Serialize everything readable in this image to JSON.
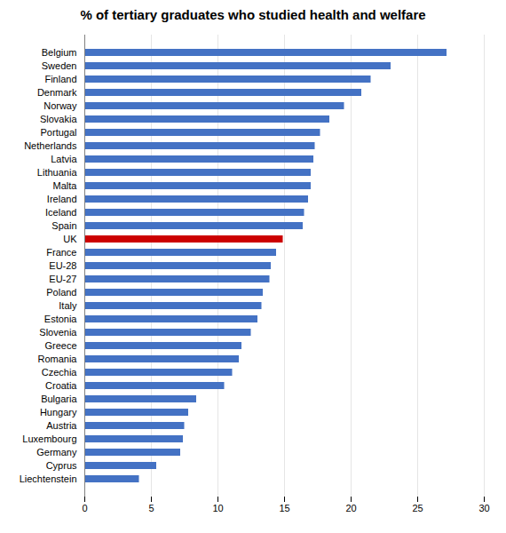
{
  "chart_data": {
    "type": "bar",
    "orientation": "horizontal",
    "title": "% of tertiary graduates who studied health and welfare",
    "categories": [
      "Belgium",
      "Sweden",
      "Finland",
      "Denmark",
      "Norway",
      "Slovakia",
      "Portugal",
      "Netherlands",
      "Latvia",
      "Lithuania",
      "Malta",
      "Ireland",
      "Iceland",
      "Spain",
      "UK",
      "France",
      "EU-28",
      "EU-27",
      "Poland",
      "Italy",
      "Estonia",
      "Slovenia",
      "Greece",
      "Romania",
      "Czechia",
      "Croatia",
      "Bulgaria",
      "Hungary",
      "Austria",
      "Luxembourg",
      "Germany",
      "Cyprus",
      "Liechtenstein"
    ],
    "values": [
      27.2,
      23.0,
      21.5,
      20.8,
      19.5,
      18.4,
      17.7,
      17.3,
      17.2,
      17.0,
      17.0,
      16.8,
      16.5,
      16.4,
      14.9,
      14.4,
      14.0,
      13.9,
      13.4,
      13.3,
      13.0,
      12.5,
      11.8,
      11.6,
      11.1,
      10.5,
      8.4,
      7.8,
      7.5,
      7.4,
      7.2,
      5.4,
      4.1
    ],
    "colors": [
      "#4472C4",
      "#4472C4",
      "#4472C4",
      "#4472C4",
      "#4472C4",
      "#4472C4",
      "#4472C4",
      "#4472C4",
      "#4472C4",
      "#4472C4",
      "#4472C4",
      "#4472C4",
      "#4472C4",
      "#4472C4",
      "#CC0000",
      "#4472C4",
      "#4472C4",
      "#4472C4",
      "#4472C4",
      "#4472C4",
      "#4472C4",
      "#4472C4",
      "#4472C4",
      "#4472C4",
      "#4472C4",
      "#4472C4",
      "#4472C4",
      "#4472C4",
      "#4472C4",
      "#4472C4",
      "#4472C4",
      "#4472C4",
      "#4472C4"
    ],
    "xlim": [
      0,
      30
    ],
    "xticks": [
      0,
      5,
      10,
      15,
      20,
      25,
      30
    ],
    "grid": true
  }
}
